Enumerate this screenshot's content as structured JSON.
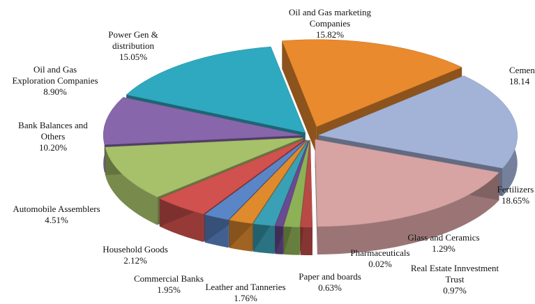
{
  "chart_data": {
    "type": "pie",
    "style": "3d-exploded",
    "slices": [
      {
        "name": "Oil and Gas marketing Companies",
        "value": 15.82,
        "label": "15.82%",
        "color": "#e98a2e"
      },
      {
        "name": "Cement",
        "value": 18.14,
        "label": "18.14%",
        "color": "#a3b3d8"
      },
      {
        "name": "Fertilizers",
        "value": 18.65,
        "label": "18.65%",
        "color": "#d7a3a3"
      },
      {
        "name": "Real Estate Innvestment Trust",
        "value": 0.97,
        "label": "0.97%",
        "color": "#b94945"
      },
      {
        "name": "Glass and Ceramics",
        "value": 1.29,
        "label": "1.29%",
        "color": "#8db156"
      },
      {
        "name": "Pharmaceuticals",
        "value": 0.02,
        "label": "0.02%",
        "color": "#8a6aa8"
      },
      {
        "name": "Paper and boards",
        "value": 0.63,
        "label": "0.63%",
        "color": "#6a4a92"
      },
      {
        "name": "Leather and Tanneries",
        "value": 1.76,
        "label": "1.76%",
        "color": "#3aa0b6"
      },
      {
        "name": "Commercial Banks",
        "value": 1.95,
        "label": "1.95%",
        "color": "#e08a2e"
      },
      {
        "name": "Household Goods",
        "value": 2.12,
        "label": "2.12%",
        "color": "#5a86c8"
      },
      {
        "name": "Automobile Assemblers",
        "value": 4.51,
        "label": "4.51%",
        "color": "#d0514e"
      },
      {
        "name": "Bank Balances and Others",
        "value": 10.2,
        "label": "10.20%",
        "color": "#a6c16a"
      },
      {
        "name": "Oil and Gas Exploration Companies",
        "value": 8.9,
        "label": "8.90%",
        "color": "#8866ac"
      },
      {
        "name": "Power Gen & distribution",
        "value": 15.05,
        "label": "15.05%",
        "color": "#2fa9bf"
      }
    ]
  },
  "labels": {
    "oil_marketing": [
      "Oil and Gas marketing",
      "Companies",
      "15.82%"
    ],
    "cement": [
      "Cemen",
      "18.14"
    ],
    "fertilizers": [
      "Fertilizers",
      "18.65%"
    ],
    "glass": [
      "Glass and Ceramics",
      "1.29%"
    ],
    "pharma": [
      "Pharmaceuticals",
      "0.02%"
    ],
    "reit": [
      "Real Estate Innvestment",
      "Trust",
      "0.97%"
    ],
    "paper": [
      "Paper and boards",
      "0.63%"
    ],
    "leather": [
      "Leather and Tanneries",
      "1.76%"
    ],
    "comm_banks": [
      "Commercial Banks",
      "1.95%"
    ],
    "household": [
      "Household Goods",
      "2.12%"
    ],
    "auto": [
      "Automobile Assemblers",
      "4.51%"
    ],
    "bank_bal": [
      "Bank Balances and",
      "Others",
      "10.20%"
    ],
    "oil_expl": [
      "Oil and Gas",
      "Exploration Companies",
      "8.90%"
    ],
    "power": [
      "Power Gen &",
      "distribution",
      "15.05%"
    ]
  }
}
